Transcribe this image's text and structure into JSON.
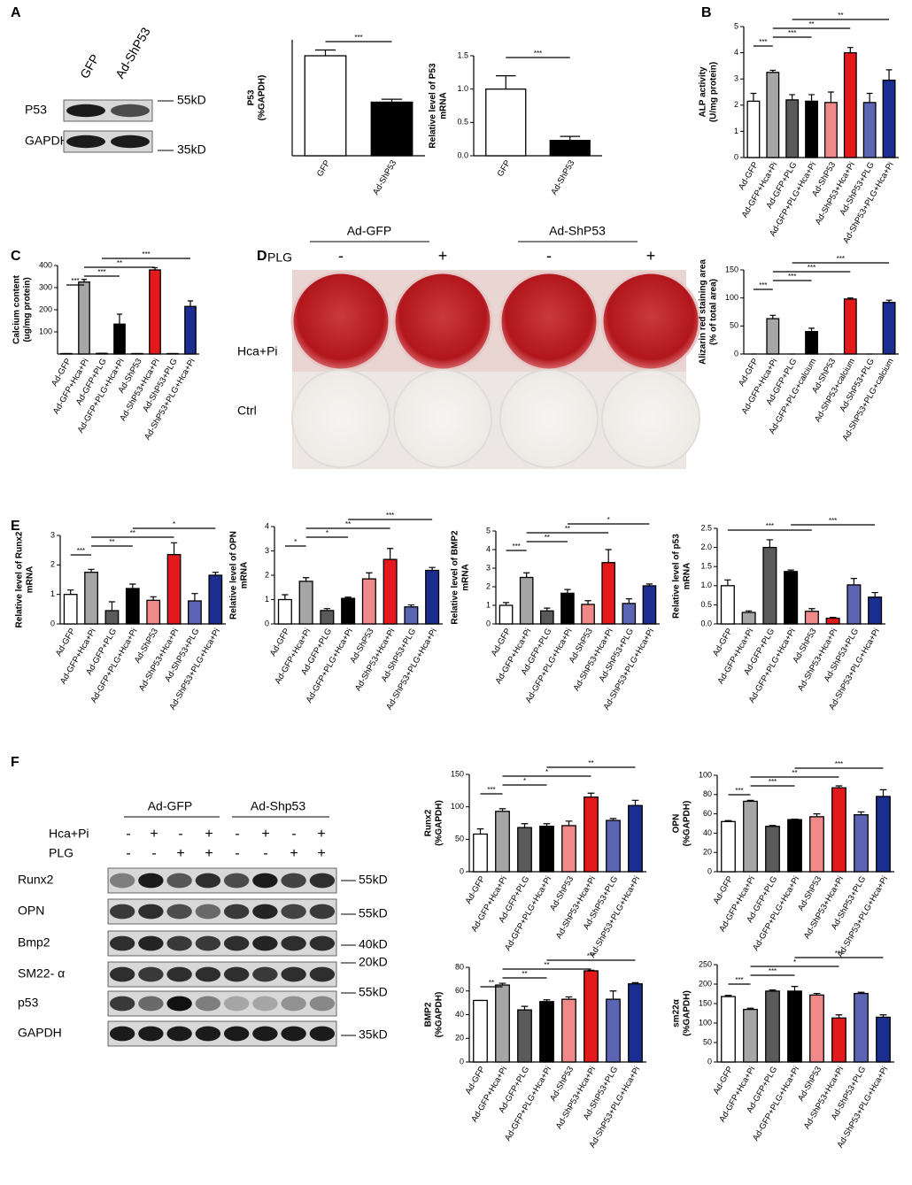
{
  "panel_labels": [
    "A",
    "B",
    "C",
    "D",
    "E",
    "F"
  ],
  "blot_a": {
    "lanes": [
      "GFP",
      "Ad-ShP53"
    ],
    "rows": [
      {
        "label": "P53",
        "marker": "55kD"
      },
      {
        "label": "GAPDH",
        "marker": "35kD"
      }
    ]
  },
  "photo_d": {
    "groups": [
      "Ad-GFP",
      "Ad-ShP53"
    ],
    "plg_label": "PLG",
    "plg": [
      "-",
      "+",
      "-",
      "+"
    ],
    "rows": [
      "Hca+Pi",
      "Ctrl"
    ]
  },
  "blot_f": {
    "groups": [
      "Ad-GFP",
      "Ad-Shp53"
    ],
    "treatments": [
      {
        "label": "Hca+Pi",
        "signs": [
          "-",
          "+",
          "-",
          "+",
          "-",
          "+",
          "-",
          "+"
        ]
      },
      {
        "label": "PLG",
        "signs": [
          "-",
          "-",
          "+",
          "+",
          "-",
          "-",
          "+",
          "+"
        ]
      }
    ],
    "rows": [
      {
        "label": "Runx2",
        "marker": "55kD"
      },
      {
        "label": "OPN",
        "marker": "55kD"
      },
      {
        "label": "Bmp2",
        "marker": "40kD"
      },
      {
        "label": "SM22- α",
        "marker": "20kD"
      },
      {
        "label": "p53",
        "marker": "55kD"
      },
      {
        "label": "GAPDH",
        "marker": "35kD"
      }
    ]
  },
  "chart_data": [
    {
      "type": "bar",
      "ylabel": [
        "P53",
        "(%GAPDH)"
      ],
      "categories": [
        "GFP",
        "Ad-ShP53"
      ],
      "values": [
        69,
        37
      ],
      "errors": [
        4,
        2
      ],
      "colors": [
        "#ffffff",
        "#000000"
      ],
      "ylim": [
        0,
        80
      ],
      "yticks": [],
      "significance": [
        "***"
      ]
    },
    {
      "type": "bar",
      "ylabel": [
        "Relative level of P53",
        "mRNA"
      ],
      "categories": [
        "GFP",
        "Ad-ShP53"
      ],
      "values": [
        1.0,
        0.23
      ],
      "errors": [
        0.2,
        0.06
      ],
      "colors": [
        "#ffffff",
        "#000000"
      ],
      "ylim": [
        0,
        1.5
      ],
      "yticks": [
        {
          "value": 0,
          "label": "0.0"
        },
        0.5,
        {
          "value": 1,
          "label": "1.0"
        },
        1.5
      ],
      "significance": [
        "***"
      ]
    },
    {
      "type": "bar",
      "ylabel": [
        "ALP activity",
        "(U/mg protein)"
      ],
      "categories": [
        "Ad-GFP",
        "Ad-GFP+Hca+Pi",
        "Ad-GFP+PLG",
        "Ad-GFP+PLG+Hca+Pi",
        "Ad-ShP53",
        "Ad-ShP53+Hca+Pi",
        "Ad-ShP53+PLG",
        "Ad-ShP53+PLG+Hca+Pi"
      ],
      "values": [
        2.15,
        3.25,
        2.2,
        2.15,
        2.1,
        4.0,
        2.1,
        2.95
      ],
      "errors": [
        0.3,
        0.08,
        0.2,
        0.25,
        0.4,
        0.2,
        0.35,
        0.4
      ],
      "colors": [
        "#ffffff",
        "#a6a6a6",
        "#5a5a5a",
        "#000000",
        "#f08a8a",
        "#e4191c",
        "#5c64b4",
        "#1b2d8f"
      ],
      "ylim": [
        0,
        5
      ],
      "yticks": [
        0,
        1,
        2,
        3,
        4,
        5
      ],
      "significance": [
        "***",
        "***",
        "**",
        "**"
      ]
    },
    {
      "type": "bar",
      "ylabel": [
        "Calcium content",
        "(ug/mg protein)"
      ],
      "categories": [
        "Ad-GFP",
        "Ad-GFP+Hca+Pi",
        "Ad-GFP+PLG",
        "Ad-GFP+PLG+Hca+Pi",
        "Ad-ShP53",
        "Ad-ShP53+Hca+Pi",
        "Ad-ShP53+PLG",
        "Ad-ShP53+PLG+Hca+Pi"
      ],
      "values": [
        2,
        325,
        3,
        135,
        2,
        380,
        2,
        215
      ],
      "errors": [
        0,
        12,
        0,
        45,
        0,
        10,
        0,
        25
      ],
      "colors": [
        "#ffffff",
        "#a6a6a6",
        "#5a5a5a",
        "#000000",
        "#f08a8a",
        "#e4191c",
        "#5c64b4",
        "#1b2d8f"
      ],
      "ylim": [
        0,
        400
      ],
      "yticks": [
        100,
        200,
        300,
        400
      ],
      "significance": [
        "***",
        "***",
        "**",
        "***"
      ]
    },
    {
      "type": "bar",
      "ylabel": [
        "Alizarin red staining area",
        "(% of total area)"
      ],
      "categories": [
        "Ad-GFP",
        "Ad-GFP+Hca+Pi",
        "Ad-GFP+PLG",
        "Ad-GFP+PLG+calcium",
        "Ad-ShP53",
        "Ad-ShP53+calcium",
        "Ad-ShP53+PLG",
        "Ad-ShP53+PLG+calcium"
      ],
      "values": [
        0,
        63,
        0,
        40,
        0,
        98,
        0,
        92
      ],
      "errors": [
        0,
        6,
        0,
        6,
        0,
        2,
        0,
        4
      ],
      "colors": [
        "#ffffff",
        "#a6a6a6",
        "#5a5a5a",
        "#000000",
        "#f08a8a",
        "#e4191c",
        "#5c64b4",
        "#1b2d8f"
      ],
      "ylim": [
        0,
        150
      ],
      "yticks": [
        0,
        50,
        100,
        150
      ],
      "significance": [
        "***",
        "***",
        "***",
        "***"
      ]
    },
    {
      "type": "bar",
      "ylabel": [
        "Relative level of Runx2",
        "mRNA"
      ],
      "categories": [
        "Ad-GFP",
        "Ad-GFP+Hca+Pi",
        "Ad-GFP+PLG",
        "Ad-GFP+PLG+Hca+Pi",
        "Ad-ShP53",
        "Ad-ShP53+Hca+Pi",
        "Ad-ShP53+PLG",
        "Ad-ShP53+PLG+Hca+Pi"
      ],
      "values": [
        1.0,
        1.75,
        0.45,
        1.2,
        0.8,
        2.35,
        0.78,
        1.65
      ],
      "errors": [
        0.15,
        0.1,
        0.3,
        0.15,
        0.12,
        0.4,
        0.25,
        0.1
      ],
      "colors": [
        "#ffffff",
        "#a6a6a6",
        "#5a5a5a",
        "#000000",
        "#f08a8a",
        "#e4191c",
        "#5c64b4",
        "#1b2d8f"
      ],
      "ylim": [
        0,
        3
      ],
      "yticks": [
        0,
        1,
        2,
        3
      ],
      "significance": [
        "***",
        "**",
        "**",
        "*"
      ]
    },
    {
      "type": "bar",
      "ylabel": [
        "Relative level of OPN",
        "mRNA"
      ],
      "categories": [
        "Ad-GFP",
        "Ad-GFP+Hca+Pi",
        "Ad-GFP+PLG",
        "Ad-GFP+PLG+Hca+Pi",
        "Ad-ShP53",
        "Ad-ShP53+Hca+Pi",
        "Ad-ShP53+PLG",
        "Ad-ShP53+PLG+Hca+Pi"
      ],
      "values": [
        1.0,
        1.75,
        0.55,
        1.05,
        1.85,
        2.65,
        0.7,
        2.2
      ],
      "errors": [
        0.2,
        0.15,
        0.08,
        0.05,
        0.25,
        0.45,
        0.08,
        0.12
      ],
      "colors": [
        "#ffffff",
        "#a6a6a6",
        "#5a5a5a",
        "#000000",
        "#f08a8a",
        "#e4191c",
        "#5c64b4",
        "#1b2d8f"
      ],
      "ylim": [
        0,
        4
      ],
      "yticks": [
        0,
        1,
        2,
        3,
        4
      ],
      "significance": [
        "*",
        "*",
        "**",
        "***"
      ]
    },
    {
      "type": "bar",
      "ylabel": [
        "Relative level of BMP2",
        "mRNA"
      ],
      "categories": [
        "Ad-GFP",
        "Ad-GFP+Hca+Pi",
        "Ad-GFP+PLG",
        "Ad-GFP+PLG+Hca+Pi",
        "Ad-ShP53",
        "Ad-ShP53+Hca+Pi",
        "Ad-ShP53+PLG",
        "Ad-ShP53+PLG+Hca+Pi"
      ],
      "values": [
        1.0,
        2.5,
        0.7,
        1.65,
        1.05,
        3.3,
        1.1,
        2.05
      ],
      "errors": [
        0.15,
        0.25,
        0.15,
        0.2,
        0.2,
        0.7,
        0.25,
        0.1
      ],
      "colors": [
        "#ffffff",
        "#a6a6a6",
        "#5a5a5a",
        "#000000",
        "#f08a8a",
        "#e4191c",
        "#5c64b4",
        "#1b2d8f"
      ],
      "ylim": [
        0,
        5
      ],
      "yticks": [
        0,
        1,
        2,
        3,
        4,
        5
      ],
      "significance": [
        "***",
        "**",
        "**",
        "*"
      ]
    },
    {
      "type": "bar",
      "ylabel": [
        "Relative level of p53",
        "mRNA"
      ],
      "categories": [
        "Ad-GFP",
        "Ad-GFP+Hca+Pi",
        "Ad-GFP+PLG",
        "Ad-GFP+PLG+Hca+Pi",
        "Ad-ShP53",
        "Ad-ShP53+Hca+Pi",
        "Ad-ShP53+PLG",
        "Ad-ShP53+PLG+Hca+Pi"
      ],
      "values": [
        1.0,
        0.3,
        2.0,
        1.37,
        0.33,
        0.15,
        1.02,
        0.7
      ],
      "errors": [
        0.15,
        0.04,
        0.2,
        0.04,
        0.07,
        0.02,
        0.17,
        0.12
      ],
      "colors": [
        "#ffffff",
        "#a6a6a6",
        "#5a5a5a",
        "#000000",
        "#f08a8a",
        "#e4191c",
        "#5c64b4",
        "#1b2d8f"
      ],
      "ylim": [
        0,
        2.5
      ],
      "yticks": [
        {
          "value": 0,
          "label": "0.0"
        },
        0.5,
        {
          "value": 1,
          "label": "1.0"
        },
        1.5,
        {
          "value": 2,
          "label": "2.0"
        },
        2.5
      ],
      "significance": [
        "***",
        "***"
      ]
    },
    {
      "type": "bar",
      "ylabel": [
        "Runx2",
        "(%GAPDH)"
      ],
      "categories": [
        "Ad-GFP",
        "Ad-GFP+Hca+Pi",
        "Ad-GFP+PLG",
        "Ad-GFP+PLG+Hca+Pi",
        "Ad-ShP53",
        "Ad-ShP53+Hca+Pi",
        "Ad-ShP53+PLG",
        "Ad-ShP53+PLG+Hca+Pi"
      ],
      "values": [
        58,
        93,
        68,
        70,
        71,
        115,
        79,
        102
      ],
      "errors": [
        8,
        4,
        6,
        4,
        7,
        6,
        3,
        8
      ],
      "colors": [
        "#ffffff",
        "#a6a6a6",
        "#5a5a5a",
        "#000000",
        "#f08a8a",
        "#e4191c",
        "#5c64b4",
        "#1b2d8f"
      ],
      "ylim": [
        0,
        150
      ],
      "yticks": [
        0,
        50,
        100,
        150
      ],
      "significance": [
        "***",
        "*",
        "*",
        "**"
      ]
    },
    {
      "type": "bar",
      "ylabel": [
        "OPN",
        "(%GAPDH)"
      ],
      "categories": [
        "Ad-GFP",
        "Ad-GFP+Hca+Pi",
        "Ad-GFP+PLG",
        "Ad-GFP+PLG+Hca+Pi",
        "Ad-ShP53",
        "Ad-ShP53+Hca+Pi",
        "Ad-ShP53+PLG",
        "Ad-ShP53+PLG+Hca+Pi"
      ],
      "values": [
        52,
        73,
        47,
        54,
        57,
        87,
        59,
        78
      ],
      "errors": [
        1,
        1,
        1,
        0.5,
        3,
        2,
        3,
        7
      ],
      "colors": [
        "#ffffff",
        "#a6a6a6",
        "#5a5a5a",
        "#000000",
        "#f08a8a",
        "#e4191c",
        "#5c64b4",
        "#1b2d8f"
      ],
      "ylim": [
        0,
        100
      ],
      "yticks": [
        0,
        20,
        40,
        60,
        80,
        100
      ],
      "significance": [
        "***",
        "***",
        "**",
        "***"
      ]
    },
    {
      "type": "bar",
      "ylabel": [
        "BMP2",
        "(%GAPDH)"
      ],
      "categories": [
        "Ad-GFP",
        "Ad-GFP+Hca+Pi",
        "Ad-GFP+PLG",
        "Ad-GFP+PLG+Hca+Pi",
        "Ad-ShP53",
        "Ad-ShP53+Hca+Pi",
        "Ad-ShP53+PLG",
        "Ad-ShP53+PLG+Hca+Pi"
      ],
      "values": [
        52,
        65,
        44,
        51,
        53,
        77,
        53,
        66
      ],
      "errors": [
        0,
        1.5,
        3,
        1.5,
        2,
        0.5,
        7,
        1
      ],
      "colors": [
        "#ffffff",
        "#a6a6a6",
        "#5a5a5a",
        "#000000",
        "#f08a8a",
        "#e4191c",
        "#5c64b4",
        "#1b2d8f"
      ],
      "ylim": [
        0,
        80
      ],
      "yticks": [
        0,
        20,
        40,
        60,
        80
      ],
      "significance": [
        "**",
        "**",
        "**",
        "***"
      ]
    },
    {
      "type": "bar",
      "ylabel": [
        "sm22α",
        "(%GAPDH)"
      ],
      "categories": [
        "Ad-GFP",
        "Ad-GFP+Hca+Pi",
        "Ad-GFP+PLG",
        "Ad-GFP+PLG+Hca+Pi",
        "Ad-ShP53",
        "Ad-ShP53+Hca+Pi",
        "Ad-ShP53+PLG",
        "Ad-ShP53+PLG+Hca+Pi"
      ],
      "values": [
        168,
        135,
        182,
        182,
        172,
        113,
        176,
        115
      ],
      "errors": [
        3,
        3,
        3,
        12,
        4,
        8,
        3,
        6
      ],
      "colors": [
        "#ffffff",
        "#a6a6a6",
        "#5a5a5a",
        "#000000",
        "#f08a8a",
        "#e4191c",
        "#5c64b4",
        "#1b2d8f"
      ],
      "ylim": [
        0,
        250
      ],
      "yticks": [
        0,
        50,
        100,
        150,
        200,
        250
      ],
      "significance": [
        "***",
        "***",
        "*",
        "***"
      ]
    }
  ]
}
